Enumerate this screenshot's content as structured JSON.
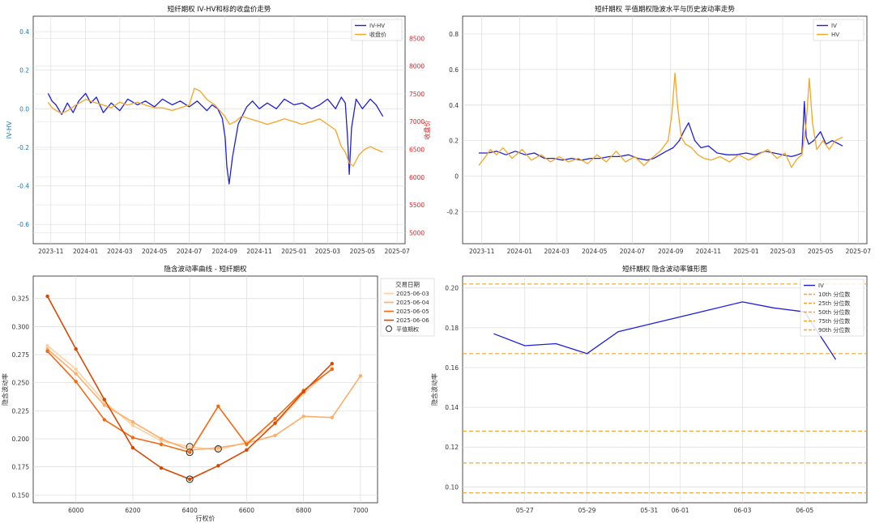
{
  "chart_data": [
    {
      "type": "line",
      "title": "短纤期权 IV-HV和标的收盘价走势",
      "xlabel": "",
      "ylabel": "IV-HV",
      "y2label": "收盘价",
      "xlim": [
        "2023-10-01",
        "2025-07-15"
      ],
      "ylim": [
        -0.7,
        0.48
      ],
      "y2lim": [
        4800,
        8900
      ],
      "x_ticks": [
        "2023-11",
        "2024-01",
        "2024-03",
        "2024-05",
        "2024-07",
        "2024-09",
        "2024-11",
        "2025-01",
        "2025-03",
        "2025-05",
        "2025-07"
      ],
      "y_ticks": [
        "0.4",
        "0.2",
        "0.0",
        "-0.2",
        "-0.4",
        "-0.6"
      ],
      "y2_ticks": [
        "8500",
        "8000",
        "7500",
        "7000",
        "6500",
        "6000",
        "5500",
        "5000"
      ],
      "grid": true,
      "legend": "top-right",
      "series": [
        {
          "name": "IV-HV",
          "color": "#1f1fdc",
          "axis": "left",
          "x": [
            "2023-10-27",
            "2023-11-03",
            "2023-11-10",
            "2023-11-20",
            "2023-11-30",
            "2023-12-10",
            "2023-12-20",
            "2024-01-01",
            "2024-01-10",
            "2024-01-20",
            "2024-02-01",
            "2024-02-15",
            "2024-03-01",
            "2024-03-15",
            "2024-04-01",
            "2024-04-15",
            "2024-05-01",
            "2024-05-15",
            "2024-06-01",
            "2024-06-15",
            "2024-07-01",
            "2024-07-15",
            "2024-08-01",
            "2024-08-10",
            "2024-08-20",
            "2024-08-28",
            "2024-09-02",
            "2024-09-05",
            "2024-09-09",
            "2024-09-15",
            "2024-09-25",
            "2024-10-10",
            "2024-10-20",
            "2024-11-01",
            "2024-11-15",
            "2024-12-01",
            "2024-12-15",
            "2025-01-01",
            "2025-01-15",
            "2025-02-01",
            "2025-02-15",
            "2025-03-01",
            "2025-03-15",
            "2025-03-25",
            "2025-04-01",
            "2025-04-05",
            "2025-04-08",
            "2025-04-12",
            "2025-04-20",
            "2025-05-01",
            "2025-05-15",
            "2025-05-25",
            "2025-06-06"
          ],
          "values": [
            0.08,
            0.04,
            0.02,
            -0.03,
            0.03,
            -0.02,
            0.04,
            0.08,
            0.03,
            0.06,
            -0.02,
            0.03,
            -0.01,
            0.05,
            0.02,
            0.04,
            0.01,
            0.05,
            0.02,
            0.04,
            0.01,
            0.04,
            -0.01,
            0.02,
            0.0,
            -0.05,
            -0.15,
            -0.3,
            -0.39,
            -0.25,
            -0.08,
            0.01,
            0.04,
            0.0,
            0.03,
            0.0,
            0.05,
            0.02,
            0.03,
            0.0,
            0.02,
            0.05,
            0.0,
            0.06,
            0.03,
            -0.15,
            -0.34,
            -0.1,
            0.05,
            0.0,
            0.05,
            0.02,
            -0.04
          ]
        },
        {
          "name": "收盘价",
          "color": "#f5a623",
          "axis": "right",
          "x": [
            "2023-10-27",
            "2023-11-03",
            "2023-11-10",
            "2023-11-20",
            "2023-12-01",
            "2023-12-15",
            "2024-01-01",
            "2024-01-15",
            "2024-02-01",
            "2024-02-15",
            "2024-03-01",
            "2024-03-15",
            "2024-04-01",
            "2024-04-15",
            "2024-05-01",
            "2024-05-15",
            "2024-06-01",
            "2024-06-15",
            "2024-07-01",
            "2024-07-10",
            "2024-07-20",
            "2024-08-01",
            "2024-08-15",
            "2024-09-01",
            "2024-09-10",
            "2024-09-20",
            "2024-10-01",
            "2024-10-15",
            "2024-11-01",
            "2024-11-15",
            "2024-12-01",
            "2024-12-15",
            "2025-01-01",
            "2025-01-15",
            "2025-02-01",
            "2025-02-15",
            "2025-03-01",
            "2025-03-15",
            "2025-03-25",
            "2025-04-01",
            "2025-04-08",
            "2025-04-15",
            "2025-04-25",
            "2025-05-05",
            "2025-05-15",
            "2025-05-25",
            "2025-06-06"
          ],
          "values": [
            7350,
            7250,
            7200,
            7150,
            7200,
            7300,
            7400,
            7350,
            7300,
            7250,
            7350,
            7300,
            7350,
            7300,
            7250,
            7250,
            7200,
            7250,
            7300,
            7600,
            7550,
            7400,
            7300,
            7100,
            6950,
            7000,
            7100,
            7050,
            7000,
            6950,
            7000,
            7050,
            7000,
            6950,
            7000,
            7050,
            6950,
            6850,
            6550,
            6450,
            6250,
            6200,
            6400,
            6500,
            6550,
            6500,
            6450
          ]
        }
      ]
    },
    {
      "type": "line",
      "title": "短纤期权 平值期权隐波水平与历史波动率走势",
      "xlabel": "",
      "ylabel": "",
      "xlim": [
        "2023-10-01",
        "2025-07-15"
      ],
      "ylim": [
        -0.38,
        0.9
      ],
      "x_ticks": [
        "2023-11",
        "2024-01",
        "2024-03",
        "2024-05",
        "2024-07",
        "2024-09",
        "2024-11",
        "2025-01",
        "2025-03",
        "2025-05",
        "2025-07"
      ],
      "y_ticks": [
        "0.8",
        "0.6",
        "0.4",
        "0.2",
        "0",
        "-0.2"
      ],
      "grid": true,
      "legend": "top-right",
      "series": [
        {
          "name": "IV",
          "color": "#1f1fdc",
          "x": [
            "2023-10-27",
            "2023-11-10",
            "2023-11-25",
            "2023-12-10",
            "2023-12-25",
            "2024-01-10",
            "2024-01-25",
            "2024-02-10",
            "2024-02-25",
            "2024-03-10",
            "2024-03-25",
            "2024-04-10",
            "2024-04-25",
            "2024-05-10",
            "2024-05-25",
            "2024-06-10",
            "2024-06-25",
            "2024-07-10",
            "2024-07-25",
            "2024-08-05",
            "2024-08-15",
            "2024-08-25",
            "2024-09-05",
            "2024-09-15",
            "2024-09-22",
            "2024-09-30",
            "2024-10-10",
            "2024-10-20",
            "2024-11-01",
            "2024-11-15",
            "2024-12-01",
            "2024-12-15",
            "2025-01-01",
            "2025-01-15",
            "2025-02-01",
            "2025-02-15",
            "2025-03-01",
            "2025-03-15",
            "2025-03-25",
            "2025-04-01",
            "2025-04-05",
            "2025-04-08",
            "2025-04-12",
            "2025-04-20",
            "2025-05-01",
            "2025-05-10",
            "2025-05-20",
            "2025-06-06"
          ],
          "values": [
            0.13,
            0.13,
            0.14,
            0.12,
            0.14,
            0.12,
            0.13,
            0.1,
            0.1,
            0.09,
            0.1,
            0.09,
            0.1,
            0.1,
            0.11,
            0.11,
            0.12,
            0.1,
            0.09,
            0.1,
            0.12,
            0.14,
            0.16,
            0.2,
            0.25,
            0.3,
            0.2,
            0.16,
            0.17,
            0.13,
            0.12,
            0.12,
            0.13,
            0.12,
            0.14,
            0.13,
            0.12,
            0.11,
            0.12,
            0.13,
            0.42,
            0.22,
            0.18,
            0.2,
            0.25,
            0.18,
            0.2,
            0.17
          ]
        },
        {
          "name": "HV",
          "color": "#f5a623",
          "x": [
            "2023-10-27",
            "2023-11-05",
            "2023-11-15",
            "2023-11-25",
            "2023-12-05",
            "2023-12-20",
            "2024-01-05",
            "2024-01-20",
            "2024-02-05",
            "2024-02-20",
            "2024-03-05",
            "2024-03-20",
            "2024-04-05",
            "2024-04-20",
            "2024-05-05",
            "2024-05-20",
            "2024-06-05",
            "2024-06-20",
            "2024-07-05",
            "2024-07-20",
            "2024-08-01",
            "2024-08-15",
            "2024-08-28",
            "2024-09-03",
            "2024-09-08",
            "2024-09-12",
            "2024-09-18",
            "2024-09-25",
            "2024-10-05",
            "2024-10-15",
            "2024-10-25",
            "2024-11-05",
            "2024-11-20",
            "2024-12-05",
            "2024-12-20",
            "2025-01-05",
            "2025-01-20",
            "2025-02-05",
            "2025-02-20",
            "2025-03-05",
            "2025-03-15",
            "2025-03-25",
            "2025-04-01",
            "2025-04-08",
            "2025-04-13",
            "2025-04-18",
            "2025-04-25",
            "2025-05-05",
            "2025-05-15",
            "2025-05-25",
            "2025-06-06"
          ],
          "values": [
            0.06,
            0.1,
            0.15,
            0.12,
            0.16,
            0.1,
            0.15,
            0.09,
            0.12,
            0.08,
            0.11,
            0.08,
            0.1,
            0.07,
            0.12,
            0.08,
            0.14,
            0.08,
            0.11,
            0.06,
            0.1,
            0.14,
            0.2,
            0.35,
            0.58,
            0.4,
            0.22,
            0.18,
            0.16,
            0.12,
            0.1,
            0.09,
            0.11,
            0.08,
            0.12,
            0.09,
            0.12,
            0.15,
            0.1,
            0.13,
            0.05,
            0.1,
            0.12,
            0.3,
            0.55,
            0.3,
            0.15,
            0.2,
            0.15,
            0.2,
            0.22
          ]
        }
      ]
    },
    {
      "type": "line",
      "title": "隐含波动率曲线 - 短纤期权",
      "xlabel": "行权价",
      "ylabel": "隐含波动率",
      "xlim": [
        5850,
        7060
      ],
      "ylim": [
        0.143,
        0.345
      ],
      "x_ticks": [
        "6000",
        "6200",
        "6400",
        "6600",
        "6800",
        "7000"
      ],
      "y_ticks": [
        "0.325",
        "0.300",
        "0.275",
        "0.250",
        "0.225",
        "0.200",
        "0.175",
        "0.150"
      ],
      "grid": true,
      "legend_title": "交易日期",
      "legend": "right-outside",
      "atm_label": "平值期权",
      "series": [
        {
          "name": "2025-06-03",
          "color": "#fdd0a2",
          "x": [
            5900,
            6000,
            6100,
            6200,
            6300,
            6400,
            6500,
            6600,
            6700,
            6800,
            6900
          ],
          "values": [
            0.283,
            0.262,
            0.233,
            0.212,
            0.198,
            0.193,
            0.19,
            0.197,
            0.213,
            0.24,
            0.263
          ],
          "atm": [
            6400,
            0.193
          ]
        },
        {
          "name": "2025-06-04",
          "color": "#fdae6b",
          "x": [
            5900,
            6000,
            6100,
            6200,
            6300,
            6400,
            6500,
            6600,
            6700,
            6800,
            6900,
            7000
          ],
          "values": [
            0.28,
            0.258,
            0.23,
            0.215,
            0.2,
            0.19,
            0.192,
            0.196,
            0.203,
            0.22,
            0.219,
            0.256
          ],
          "atm": [
            6500,
            0.191
          ]
        },
        {
          "name": "2025-06-05",
          "color": "#f16913",
          "x": [
            5900,
            6000,
            6100,
            6200,
            6300,
            6400,
            6500,
            6600,
            6700,
            6800,
            6900
          ],
          "values": [
            0.278,
            0.251,
            0.217,
            0.201,
            0.195,
            0.188,
            0.229,
            0.195,
            0.218,
            0.243,
            0.262
          ],
          "atm": [
            6400,
            0.188
          ]
        },
        {
          "name": "2025-06-06",
          "color": "#d94801",
          "x": [
            5900,
            6000,
            6100,
            6200,
            6300,
            6400,
            6500,
            6600,
            6700,
            6800,
            6900
          ],
          "values": [
            0.327,
            0.28,
            0.235,
            0.192,
            0.174,
            0.164,
            0.176,
            0.19,
            0.214,
            0.242,
            0.267
          ],
          "atm": [
            6400,
            0.164
          ]
        }
      ]
    },
    {
      "type": "line",
      "title": "短纤期权 隐含波动率锥形图",
      "xlabel": "",
      "ylabel": "隐含波动率",
      "xlim": [
        "2025-05-25",
        "2025-06-07"
      ],
      "ylim": [
        0.092,
        0.206
      ],
      "x_ticks": [
        "05-27",
        "05-29",
        "05-31",
        "06-01",
        "06-03",
        "06-05"
      ],
      "y_ticks": [
        "0.20",
        "0.18",
        "0.16",
        "0.14",
        "0.12",
        "0.10"
      ],
      "grid": true,
      "legend": "top-right",
      "series": [
        {
          "name": "IV",
          "color": "#1f1fdc",
          "x": [
            "2025-05-26",
            "2025-05-27",
            "2025-05-28",
            "2025-05-29",
            "2025-05-30",
            "2025-06-03",
            "2025-06-04",
            "2025-06-05",
            "2025-06-06"
          ],
          "values": [
            0.177,
            0.171,
            0.172,
            0.167,
            0.178,
            0.193,
            0.19,
            0.188,
            0.164
          ]
        }
      ],
      "hlines": [
        {
          "name": "10th 分位数",
          "value": 0.097,
          "color": "#f5a623"
        },
        {
          "name": "25th 分位数",
          "value": 0.112,
          "color": "#f5a623"
        },
        {
          "name": "50th 分位数",
          "value": 0.128,
          "color": "#f5a623"
        },
        {
          "name": "75th 分位数",
          "value": 0.167,
          "color": "#f5a623"
        },
        {
          "name": "90th 分位数",
          "value": 0.202,
          "color": "#f5a623"
        }
      ]
    }
  ]
}
